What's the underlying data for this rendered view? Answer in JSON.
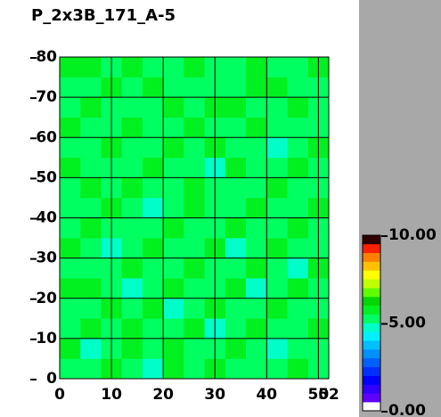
{
  "chart_data": {
    "type": "heatmap",
    "title": "P_2x3B_171_A-5",
    "xlim": [
      0,
      52
    ],
    "xticks": [
      0,
      10,
      20,
      30,
      40,
      50,
      52
    ],
    "ylim": [
      0,
      80
    ],
    "yticks": [
      0,
      10,
      20,
      30,
      40,
      50,
      60,
      70,
      80
    ],
    "grid": true,
    "z": [
      [
        5.4,
        5.1,
        5.6,
        5.2,
        4.9,
        5.5,
        5.3,
        5.7,
        5.2,
        5.0,
        5.4,
        5.6,
        5.1
      ],
      [
        5.6,
        4.9,
        5.3,
        5.5,
        5.2,
        5.8,
        5.0,
        5.3,
        5.6,
        5.2,
        4.9,
        5.4,
        5.3
      ],
      [
        5.2,
        5.5,
        5.0,
        5.7,
        5.3,
        5.1,
        5.6,
        4.8,
        5.4,
        5.7,
        5.3,
        5.0,
        5.5
      ],
      [
        5.0,
        5.3,
        5.6,
        5.1,
        5.5,
        4.9,
        5.4,
        5.6,
        5.1,
        5.3,
        5.8,
        5.2,
        5.4
      ],
      [
        5.5,
        5.7,
        5.2,
        4.9,
        5.4,
        5.6,
        5.2,
        5.3,
        5.7,
        4.9,
        5.2,
        5.5,
        5.0
      ],
      [
        5.3,
        5.0,
        5.4,
        5.6,
        5.1,
        5.3,
        5.7,
        5.0,
        5.2,
        5.5,
        5.4,
        4.9,
        5.6
      ],
      [
        5.7,
        5.2,
        4.9,
        5.3,
        5.6,
        5.0,
        5.4,
        5.5,
        4.9,
        5.3,
        5.6,
        5.2,
        5.3
      ],
      [
        5.1,
        5.5,
        5.3,
        5.0,
        5.4,
        5.7,
        5.1,
        5.3,
        5.6,
        5.2,
        5.0,
        5.5,
        5.4
      ],
      [
        5.4,
        5.3,
        5.6,
        5.2,
        4.8,
        5.3,
        5.5,
        5.2,
        5.4,
        5.7,
        5.3,
        5.1,
        5.6
      ],
      [
        5.2,
        5.6,
        5.1,
        5.5,
        5.3,
        5.0,
        5.6,
        5.4,
        5.0,
        5.3,
        5.5,
        5.4,
        5.2
      ],
      [
        5.6,
        5.0,
        5.4,
        5.3,
        5.7,
        5.4,
        5.2,
        4.9,
        5.5,
        5.1,
        5.2,
        5.6,
        5.3
      ],
      [
        5.3,
        5.4,
        5.7,
        5.0,
        5.2,
        5.5,
        5.3,
        5.6,
        5.3,
        5.4,
        4.9,
        5.3,
        5.5
      ],
      [
        5.5,
        5.2,
        5.0,
        5.6,
        5.4,
        5.1,
        5.7,
        5.3,
        5.1,
        5.6,
        5.4,
        5.0,
        5.2
      ],
      [
        5.0,
        5.6,
        5.3,
        5.4,
        5.1,
        5.6,
        5.0,
        5.5,
        5.7,
        5.2,
        5.3,
        5.5,
        5.4
      ],
      [
        5.4,
        5.3,
        5.5,
        5.1,
        5.6,
        5.3,
        5.4,
        5.2,
        5.3,
        5.5,
        5.7,
        5.2,
        5.0
      ],
      [
        5.6,
        5.5,
        5.2,
        5.7,
        5.3,
        5.4,
        5.6,
        5.4,
        5.2,
        5.6,
        5.3,
        5.4,
        5.5
      ]
    ],
    "colorbar": {
      "lim": [
        0,
        10
      ],
      "ticks": [
        {
          "value": 0,
          "label": "0.00"
        },
        {
          "value": 5,
          "label": "5.00"
        },
        {
          "value": 10,
          "label": "10.00"
        }
      ],
      "colors": [
        "#ffffff",
        "#6000ff",
        "#3000ff",
        "#0000ff",
        "#0030ff",
        "#0060ff",
        "#0090ff",
        "#00c0ff",
        "#00f0ff",
        "#00ffc8",
        "#00ff60",
        "#00f020",
        "#00d800",
        "#60ff00",
        "#c0ff00",
        "#ffff00",
        "#ffc000",
        "#ff8000",
        "#ff2000",
        "#300000"
      ]
    }
  }
}
